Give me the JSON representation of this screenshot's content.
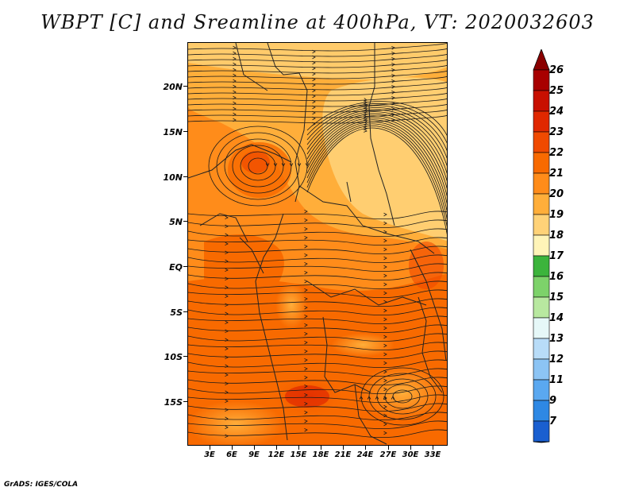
{
  "title": "WBPT [C] and Sreamline at 400hPa, VT: 2020032603",
  "footer": "GrADS: IGES/COLA",
  "map": {
    "lat_labels": [
      "20N",
      "15N",
      "10N",
      "5N",
      "EQ",
      "5S",
      "10S",
      "15S"
    ],
    "lon_labels": [
      "3E",
      "6E",
      "9E",
      "12E",
      "15E",
      "18E",
      "21E",
      "24E",
      "27E",
      "30E",
      "33E"
    ],
    "extent": {
      "lon": [
        0,
        35
      ],
      "lat": [
        -20,
        24.5
      ]
    },
    "field": "wet-bulb potential temperature",
    "streamlines": "400hPa"
  },
  "colorbar": {
    "labels": [
      "26",
      "25",
      "24",
      "23",
      "22",
      "21",
      "20",
      "19",
      "18",
      "17",
      "16",
      "15",
      "14",
      "13",
      "12",
      "11",
      "9",
      "7"
    ],
    "colors": [
      "#a80000",
      "#c81000",
      "#e02800",
      "#f04a00",
      "#f86a00",
      "#ff8c1a",
      "#ffae3a",
      "#ffd278",
      "#fff4b8",
      "#3cb43c",
      "#7dd26a",
      "#b8e8a0",
      "#e6f8f8",
      "#b8dcf8",
      "#8cc4f4",
      "#5aa8f0",
      "#2e88e4",
      "#1a5fd0"
    ],
    "arrow_top_color": "#8a0000",
    "arrow_bottom_color": "#1a5fd0"
  }
}
